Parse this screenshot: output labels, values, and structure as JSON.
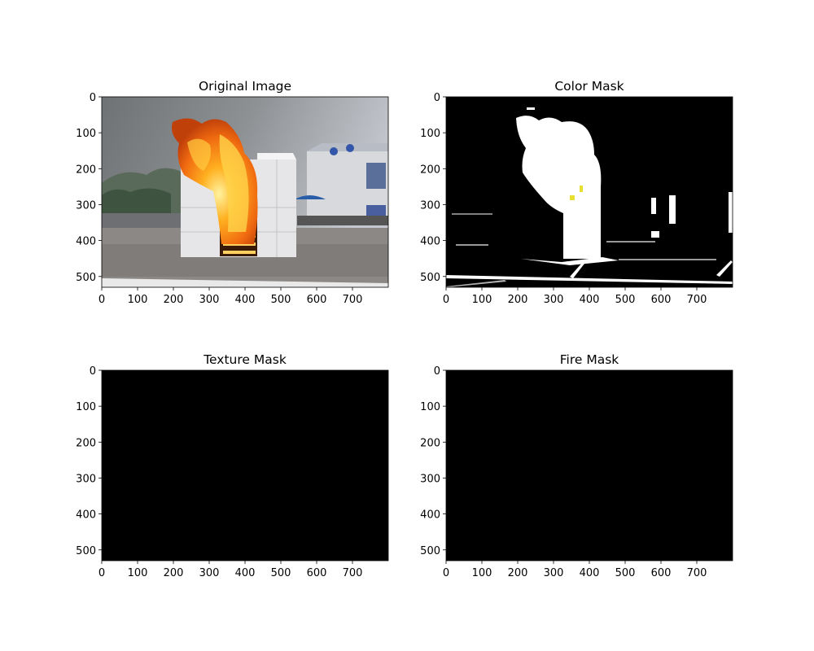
{
  "chart_data": [
    {
      "type": "image",
      "title": "Original Image",
      "xlim": [
        0,
        800
      ],
      "ylim": [
        530,
        0
      ],
      "xticks": [
        0,
        100,
        200,
        300,
        400,
        500,
        600,
        700
      ],
      "yticks": [
        0,
        100,
        200,
        300,
        400,
        500
      ]
    },
    {
      "type": "image",
      "title": "Color Mask",
      "xlim": [
        0,
        800
      ],
      "ylim": [
        530,
        0
      ],
      "xticks": [
        0,
        100,
        200,
        300,
        400,
        500,
        600,
        700
      ],
      "yticks": [
        0,
        100,
        200,
        300,
        400,
        500
      ]
    },
    {
      "type": "image",
      "title": "Texture Mask",
      "xlim": [
        0,
        800
      ],
      "ylim": [
        530,
        0
      ],
      "xticks": [
        0,
        100,
        200,
        300,
        400,
        500,
        600,
        700
      ],
      "yticks": [
        0,
        100,
        200,
        300,
        400,
        500
      ]
    },
    {
      "type": "image",
      "title": "Fire Mask",
      "xlim": [
        0,
        800
      ],
      "ylim": [
        530,
        0
      ],
      "xticks": [
        0,
        100,
        200,
        300,
        400,
        500,
        600,
        700
      ],
      "yticks": [
        0,
        100,
        200,
        300,
        400,
        500
      ]
    }
  ]
}
